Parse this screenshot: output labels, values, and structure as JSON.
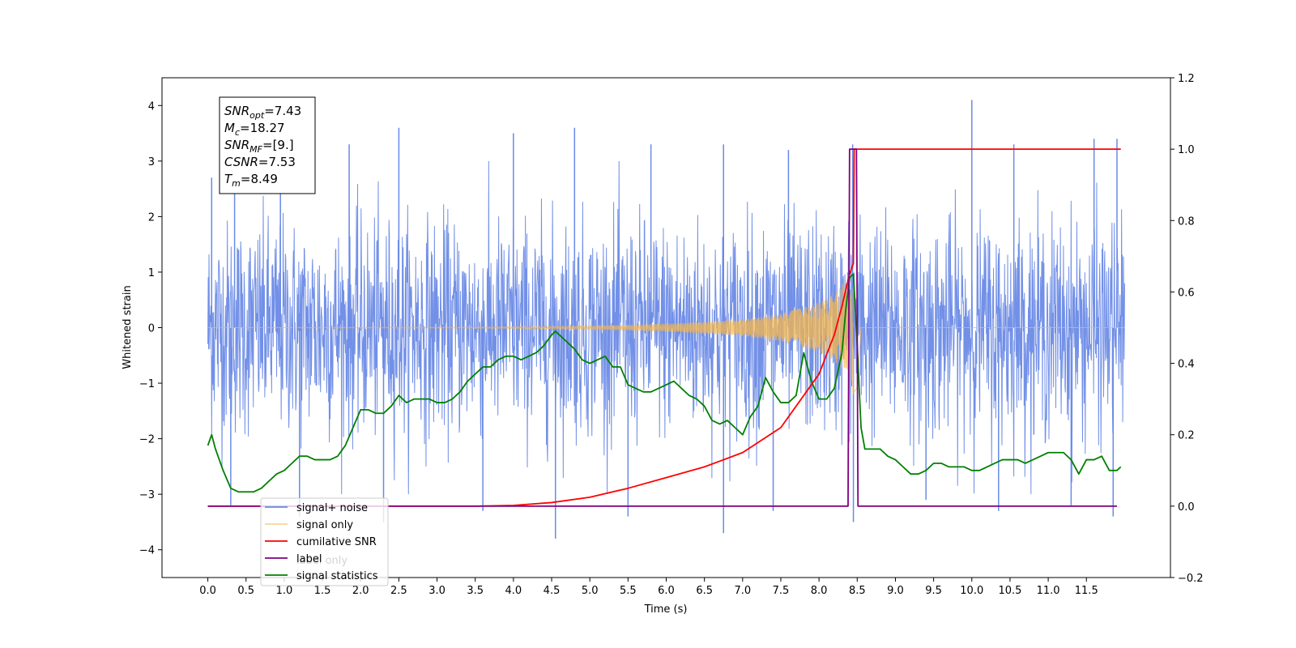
{
  "chart_data": {
    "type": "line",
    "title": "",
    "xlabel": "Time (s)",
    "ylabel": "Whitened strain",
    "y2label": "",
    "xlim": [
      -0.6,
      12.6
    ],
    "ylim": [
      -4.5,
      4.5
    ],
    "y2lim": [
      -0.2,
      1.2
    ],
    "x_ticks": [
      "0.0",
      "0.5",
      "1.0",
      "1.5",
      "2.0",
      "2.5",
      "3.0",
      "3.5",
      "4.0",
      "4.5",
      "5.0",
      "5.5",
      "6.0",
      "6.5",
      "7.0",
      "7.5",
      "8.0",
      "8.5",
      "9.0",
      "9.5",
      "10.0",
      "10.5",
      "11.0",
      "11.5"
    ],
    "y_ticks": [
      "4",
      "3",
      "2",
      "1",
      "0",
      "−1",
      "−2",
      "−3",
      "−4"
    ],
    "y2_ticks": [
      "1.2",
      "1.0",
      "0.8",
      "0.6",
      "0.4",
      "0.2",
      "0.0",
      "−0.2"
    ],
    "legend_position": "lower-left",
    "legend": [
      "signal+ noise",
      "signal only",
      "cumilative SNR",
      "label",
      "signal statistics"
    ],
    "legend_overlap_text": "label only",
    "annotation": {
      "lines": [
        {
          "base": "SNR",
          "sub": "opt",
          "value": "=7.43"
        },
        {
          "base": "M",
          "sub": "c",
          "value": "=18.27"
        },
        {
          "base": "SNR",
          "sub": "MF",
          "value": "=[9.]"
        },
        {
          "base": "CSNR",
          "sub": "",
          "value": "=7.53"
        },
        {
          "base": "T",
          "sub": "m",
          "value": "=8.49"
        }
      ]
    },
    "colors": {
      "signal_noise": "#6a8ae6",
      "signal_only": "#f5b74e",
      "cumulative_snr": "#ff0000",
      "label": "#800080",
      "signal_statistics": "#008000"
    },
    "series": [
      {
        "name": "signal+ noise",
        "axis": "left",
        "description_values": "noise band",
        "x_range": [
          0.0,
          12.0
        ],
        "envelope_typical": [
          -1.6,
          1.6
        ],
        "x_peaks": [
          0.05,
          0.35,
          0.95,
          1.85,
          2.5,
          4.0,
          4.8,
          5.8,
          6.75,
          7.6,
          8.44,
          10.0,
          10.55,
          11.6,
          11.9
        ],
        "y_peaks": [
          2.7,
          3.3,
          3.4,
          3.3,
          3.6,
          3.5,
          3.6,
          3.3,
          3.3,
          3.2,
          3.3,
          4.1,
          3.3,
          3.4,
          3.4
        ],
        "x_troughs": [
          0.3,
          1.2,
          2.3,
          3.6,
          4.55,
          5.5,
          6.75,
          7.4,
          8.45,
          9.4,
          10.35,
          11.3,
          11.85
        ],
        "y_troughs": [
          -3.2,
          -3.4,
          -3.5,
          -3.3,
          -3.8,
          -3.4,
          -3.7,
          -3.3,
          -3.5,
          -3.1,
          -3.3,
          -3.2,
          -3.4
        ]
      },
      {
        "name": "signal only",
        "axis": "left",
        "x": [
          0.0,
          3.5,
          5.0,
          6.0,
          7.0,
          7.5,
          8.0,
          8.2,
          8.3,
          8.4,
          8.45,
          8.5,
          8.55,
          12.0
        ],
        "amplitude": [
          0.0,
          0.01,
          0.03,
          0.07,
          0.15,
          0.25,
          0.45,
          0.6,
          0.75,
          1.0,
          1.2,
          1.1,
          0.0,
          0.0
        ]
      },
      {
        "name": "cumilative SNR",
        "axis": "right",
        "x": [
          0.0,
          3.5,
          4.0,
          4.5,
          5.0,
          5.5,
          6.0,
          6.5,
          7.0,
          7.5,
          8.0,
          8.2,
          8.3,
          8.4,
          8.45,
          8.46,
          8.5,
          11.95
        ],
        "y": [
          0.0,
          0.0,
          0.002,
          0.01,
          0.025,
          0.05,
          0.08,
          0.11,
          0.15,
          0.22,
          0.37,
          0.48,
          0.56,
          0.65,
          0.68,
          1.0,
          1.0,
          1.0
        ]
      },
      {
        "name": "label",
        "axis": "right",
        "x": [
          0.0,
          8.38,
          8.4,
          8.49,
          8.51,
          11.9
        ],
        "y": [
          0.0,
          0.0,
          1.0,
          1.0,
          0.0,
          0.0
        ]
      },
      {
        "name": "signal statistics",
        "axis": "right",
        "x": [
          0.0,
          0.05,
          0.1,
          0.2,
          0.3,
          0.4,
          0.5,
          0.6,
          0.7,
          0.8,
          0.9,
          1.0,
          1.1,
          1.2,
          1.3,
          1.4,
          1.5,
          1.6,
          1.7,
          1.8,
          1.9,
          2.0,
          2.1,
          2.2,
          2.3,
          2.4,
          2.5,
          2.6,
          2.7,
          2.8,
          2.9,
          3.0,
          3.1,
          3.2,
          3.3,
          3.4,
          3.5,
          3.6,
          3.7,
          3.8,
          3.9,
          4.0,
          4.1,
          4.2,
          4.3,
          4.4,
          4.5,
          4.55,
          4.6,
          4.7,
          4.8,
          4.9,
          5.0,
          5.1,
          5.2,
          5.3,
          5.4,
          5.5,
          5.6,
          5.7,
          5.8,
          5.9,
          6.0,
          6.1,
          6.2,
          6.3,
          6.4,
          6.5,
          6.6,
          6.7,
          6.8,
          6.9,
          7.0,
          7.1,
          7.2,
          7.3,
          7.4,
          7.5,
          7.6,
          7.7,
          7.8,
          7.9,
          8.0,
          8.1,
          8.2,
          8.3,
          8.35,
          8.4,
          8.45,
          8.5,
          8.55,
          8.6,
          8.7,
          8.8,
          8.9,
          9.0,
          9.1,
          9.2,
          9.3,
          9.4,
          9.5,
          9.6,
          9.7,
          9.8,
          9.9,
          10.0,
          10.1,
          10.2,
          10.3,
          10.4,
          10.5,
          10.6,
          10.7,
          10.8,
          10.9,
          11.0,
          11.1,
          11.2,
          11.3,
          11.4,
          11.5,
          11.6,
          11.7,
          11.8,
          11.9,
          11.95
        ],
        "y": [
          0.17,
          0.2,
          0.16,
          0.1,
          0.05,
          0.04,
          0.04,
          0.04,
          0.05,
          0.07,
          0.09,
          0.1,
          0.12,
          0.14,
          0.14,
          0.13,
          0.13,
          0.13,
          0.14,
          0.17,
          0.22,
          0.27,
          0.27,
          0.26,
          0.26,
          0.28,
          0.31,
          0.29,
          0.3,
          0.3,
          0.3,
          0.29,
          0.29,
          0.3,
          0.32,
          0.35,
          0.37,
          0.39,
          0.39,
          0.41,
          0.42,
          0.42,
          0.41,
          0.42,
          0.43,
          0.45,
          0.48,
          0.49,
          0.48,
          0.46,
          0.44,
          0.41,
          0.4,
          0.41,
          0.42,
          0.39,
          0.39,
          0.34,
          0.33,
          0.32,
          0.32,
          0.33,
          0.34,
          0.35,
          0.33,
          0.31,
          0.3,
          0.28,
          0.24,
          0.23,
          0.24,
          0.22,
          0.2,
          0.25,
          0.28,
          0.36,
          0.32,
          0.29,
          0.29,
          0.31,
          0.43,
          0.35,
          0.3,
          0.3,
          0.33,
          0.43,
          0.55,
          0.64,
          0.65,
          0.45,
          0.22,
          0.16,
          0.16,
          0.16,
          0.14,
          0.13,
          0.11,
          0.09,
          0.09,
          0.1,
          0.12,
          0.12,
          0.11,
          0.11,
          0.11,
          0.1,
          0.1,
          0.11,
          0.12,
          0.13,
          0.13,
          0.13,
          0.12,
          0.13,
          0.14,
          0.15,
          0.15,
          0.15,
          0.13,
          0.09,
          0.13,
          0.13,
          0.14,
          0.1,
          0.1,
          0.11
        ]
      }
    ]
  }
}
